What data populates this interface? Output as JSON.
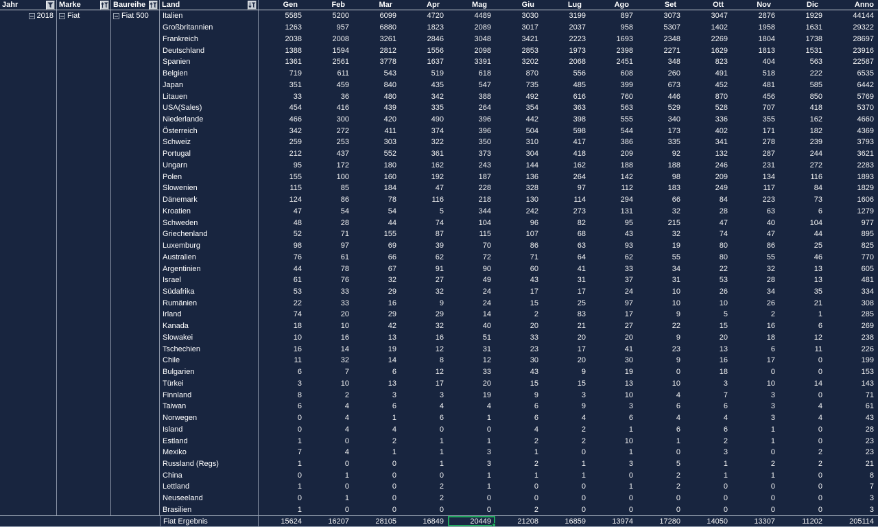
{
  "pivot": {
    "row_fields": [
      {
        "label": "Jahr",
        "filter_icon": "filter-icon",
        "value": "2018"
      },
      {
        "label": "Marke",
        "filter_icon": "sort-asc-filter-icon",
        "value": "Fiat"
      },
      {
        "label": "Baureihe",
        "filter_icon": "sort-asc-filter-icon",
        "value": "Fiat 500"
      },
      {
        "label": "Land",
        "filter_icon": "sort-desc-filter-icon"
      }
    ],
    "value_columns": [
      "Gen",
      "Feb",
      "Mar",
      "Apr",
      "Mag",
      "Giu",
      "Lug",
      "Ago",
      "Set",
      "Ott",
      "Nov",
      "Dic",
      "Anno"
    ],
    "rows": [
      {
        "land": "Italien",
        "values": [
          5585,
          5200,
          6099,
          4720,
          4489,
          3030,
          3199,
          897,
          3073,
          3047,
          2876,
          1929,
          44144
        ]
      },
      {
        "land": "Großbritannien",
        "values": [
          1263,
          957,
          6880,
          1823,
          2089,
          3017,
          2037,
          958,
          5307,
          1402,
          1958,
          1631,
          29322
        ]
      },
      {
        "land": "Frankreich",
        "values": [
          2038,
          2008,
          3261,
          2846,
          3048,
          3421,
          2223,
          1693,
          2348,
          2269,
          1804,
          1738,
          28697
        ]
      },
      {
        "land": "Deutschland",
        "values": [
          1388,
          1594,
          2812,
          1556,
          2098,
          2853,
          1973,
          2398,
          2271,
          1629,
          1813,
          1531,
          23916
        ]
      },
      {
        "land": "Spanien",
        "values": [
          1361,
          2561,
          3778,
          1637,
          3391,
          3202,
          2068,
          2451,
          348,
          823,
          404,
          563,
          22587
        ]
      },
      {
        "land": "Belgien",
        "values": [
          719,
          611,
          543,
          519,
          618,
          870,
          556,
          608,
          260,
          491,
          518,
          222,
          6535
        ]
      },
      {
        "land": "Japan",
        "values": [
          351,
          459,
          840,
          435,
          547,
          735,
          485,
          399,
          673,
          452,
          481,
          585,
          6442
        ]
      },
      {
        "land": "Litauen",
        "values": [
          33,
          36,
          480,
          342,
          388,
          492,
          616,
          760,
          446,
          870,
          456,
          850,
          5769
        ]
      },
      {
        "land": "USA(Sales)",
        "values": [
          454,
          416,
          439,
          335,
          264,
          354,
          363,
          563,
          529,
          528,
          707,
          418,
          5370
        ]
      },
      {
        "land": "Niederlande",
        "values": [
          466,
          300,
          420,
          490,
          396,
          442,
          398,
          555,
          340,
          336,
          355,
          162,
          4660
        ]
      },
      {
        "land": "Österreich",
        "values": [
          342,
          272,
          411,
          374,
          396,
          504,
          598,
          544,
          173,
          402,
          171,
          182,
          4369
        ]
      },
      {
        "land": "Schweiz",
        "values": [
          259,
          253,
          303,
          322,
          350,
          310,
          417,
          386,
          335,
          341,
          278,
          239,
          3793
        ]
      },
      {
        "land": "Portugal",
        "values": [
          212,
          437,
          552,
          361,
          373,
          304,
          418,
          209,
          92,
          132,
          287,
          244,
          3621
        ]
      },
      {
        "land": "Ungarn",
        "values": [
          95,
          172,
          180,
          162,
          243,
          144,
          162,
          188,
          188,
          246,
          231,
          272,
          2283
        ]
      },
      {
        "land": "Polen",
        "values": [
          155,
          100,
          160,
          192,
          187,
          136,
          264,
          142,
          98,
          209,
          134,
          116,
          1893
        ]
      },
      {
        "land": "Slowenien",
        "values": [
          115,
          85,
          184,
          47,
          228,
          328,
          97,
          112,
          183,
          249,
          117,
          84,
          1829
        ]
      },
      {
        "land": "Dänemark",
        "values": [
          124,
          86,
          78,
          116,
          218,
          130,
          114,
          294,
          66,
          84,
          223,
          73,
          1606
        ]
      },
      {
        "land": "Kroatien",
        "values": [
          47,
          54,
          54,
          5,
          344,
          242,
          273,
          131,
          32,
          28,
          63,
          6,
          1279
        ]
      },
      {
        "land": "Schweden",
        "values": [
          48,
          28,
          44,
          74,
          104,
          96,
          82,
          95,
          215,
          47,
          40,
          104,
          977
        ]
      },
      {
        "land": "Griechenland",
        "values": [
          52,
          71,
          155,
          87,
          115,
          107,
          68,
          43,
          32,
          74,
          47,
          44,
          895
        ]
      },
      {
        "land": "Luxemburg",
        "values": [
          98,
          97,
          69,
          39,
          70,
          86,
          63,
          93,
          19,
          80,
          86,
          25,
          825
        ]
      },
      {
        "land": "Australien",
        "values": [
          76,
          61,
          66,
          62,
          72,
          71,
          64,
          62,
          55,
          80,
          55,
          46,
          770
        ]
      },
      {
        "land": "Argentinien",
        "values": [
          44,
          78,
          67,
          91,
          90,
          60,
          41,
          33,
          34,
          22,
          32,
          13,
          605
        ]
      },
      {
        "land": "Israel",
        "values": [
          61,
          76,
          32,
          27,
          49,
          43,
          31,
          37,
          31,
          53,
          28,
          13,
          481
        ]
      },
      {
        "land": "Südafrika",
        "values": [
          53,
          33,
          29,
          32,
          24,
          17,
          17,
          24,
          10,
          26,
          34,
          35,
          334
        ]
      },
      {
        "land": "Rumänien",
        "values": [
          22,
          33,
          16,
          9,
          24,
          15,
          25,
          97,
          10,
          10,
          26,
          21,
          308
        ]
      },
      {
        "land": "Irland",
        "values": [
          74,
          20,
          29,
          29,
          14,
          2,
          83,
          17,
          9,
          5,
          2,
          1,
          285
        ]
      },
      {
        "land": "Kanada",
        "values": [
          18,
          10,
          42,
          32,
          40,
          20,
          21,
          27,
          22,
          15,
          16,
          6,
          269
        ]
      },
      {
        "land": "Slowakei",
        "values": [
          10,
          16,
          13,
          16,
          51,
          33,
          20,
          20,
          9,
          20,
          18,
          12,
          238
        ]
      },
      {
        "land": "Tschechien",
        "values": [
          16,
          14,
          19,
          12,
          31,
          23,
          17,
          41,
          23,
          13,
          6,
          11,
          226
        ]
      },
      {
        "land": "Chile",
        "values": [
          11,
          32,
          14,
          8,
          12,
          30,
          20,
          30,
          9,
          16,
          17,
          0,
          199
        ]
      },
      {
        "land": "Bulgarien",
        "values": [
          6,
          7,
          6,
          12,
          33,
          43,
          9,
          19,
          0,
          18,
          0,
          0,
          153
        ]
      },
      {
        "land": "Türkei",
        "values": [
          3,
          10,
          13,
          17,
          20,
          15,
          15,
          13,
          10,
          3,
          10,
          14,
          143
        ]
      },
      {
        "land": "Finnland",
        "values": [
          8,
          2,
          3,
          3,
          19,
          9,
          3,
          10,
          4,
          7,
          3,
          0,
          71
        ]
      },
      {
        "land": "Taiwan",
        "values": [
          6,
          4,
          6,
          4,
          4,
          6,
          9,
          3,
          6,
          6,
          3,
          4,
          61
        ]
      },
      {
        "land": "Norwegen",
        "values": [
          0,
          4,
          1,
          6,
          1,
          6,
          4,
          6,
          4,
          4,
          3,
          4,
          43
        ]
      },
      {
        "land": "Island",
        "values": [
          0,
          4,
          4,
          0,
          0,
          4,
          2,
          1,
          6,
          6,
          1,
          0,
          28
        ]
      },
      {
        "land": "Estland",
        "values": [
          1,
          0,
          2,
          1,
          1,
          2,
          2,
          10,
          1,
          2,
          1,
          0,
          23
        ]
      },
      {
        "land": "Mexiko",
        "values": [
          7,
          4,
          1,
          1,
          3,
          1,
          0,
          1,
          0,
          3,
          0,
          2,
          23
        ]
      },
      {
        "land": "Russland (Regs)",
        "values": [
          1,
          0,
          0,
          1,
          3,
          2,
          1,
          3,
          5,
          1,
          2,
          2,
          21
        ]
      },
      {
        "land": "China",
        "values": [
          0,
          1,
          0,
          0,
          1,
          1,
          1,
          0,
          2,
          1,
          1,
          0,
          8
        ]
      },
      {
        "land": "Lettland",
        "values": [
          1,
          0,
          0,
          2,
          1,
          0,
          0,
          1,
          2,
          0,
          0,
          0,
          7
        ]
      },
      {
        "land": "Neuseeland",
        "values": [
          0,
          1,
          0,
          2,
          0,
          0,
          0,
          0,
          0,
          0,
          0,
          0,
          3
        ]
      },
      {
        "land": "Brasilien",
        "values": [
          1,
          0,
          0,
          0,
          0,
          2,
          0,
          0,
          0,
          0,
          0,
          0,
          3
        ]
      }
    ],
    "footer": {
      "label": "Fiat Ergebnis",
      "values": [
        15624,
        16207,
        28105,
        16849,
        20449,
        21208,
        16859,
        13974,
        17280,
        14050,
        13307,
        11202,
        205114
      ]
    },
    "selection": {
      "area": "footer",
      "column": "Mag",
      "column_index": 4,
      "value": 20449
    }
  },
  "colors": {
    "background": "#18253f",
    "grid": "#8a94a6",
    "header_underline": "#ccd2da",
    "button_face": "#c9ced5",
    "selection_green": "#22aa60",
    "text": "#ffffff"
  }
}
